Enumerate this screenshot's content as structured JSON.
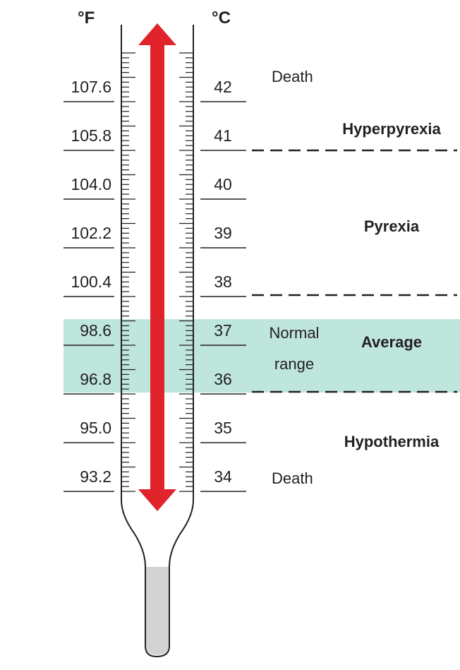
{
  "units": {
    "fahrenheit": "°F",
    "celsius": "°C"
  },
  "scale": [
    {
      "f": "107.6",
      "c": "42"
    },
    {
      "f": "105.8",
      "c": "41"
    },
    {
      "f": "104.0",
      "c": "40"
    },
    {
      "f": "102.2",
      "c": "39"
    },
    {
      "f": "100.4",
      "c": "38"
    },
    {
      "f": "98.6",
      "c": "37"
    },
    {
      "f": "96.8",
      "c": "36"
    },
    {
      "f": "95.0",
      "c": "35"
    },
    {
      "f": "93.2",
      "c": "34"
    }
  ],
  "zones": {
    "hyperpyrexia": "Hyperpyrexia",
    "pyrexia": "Pyrexia",
    "average": "Average",
    "hypothermia": "Hypothermia"
  },
  "notes": {
    "death_top": "Death",
    "death_bottom": "Death",
    "normal_line1": "Normal",
    "normal_line2": "range"
  },
  "colors": {
    "arrow": "#e1232b",
    "normal_band": "#bfe6dc",
    "line": "#231f20",
    "bulb": "#d1d2d4"
  }
}
